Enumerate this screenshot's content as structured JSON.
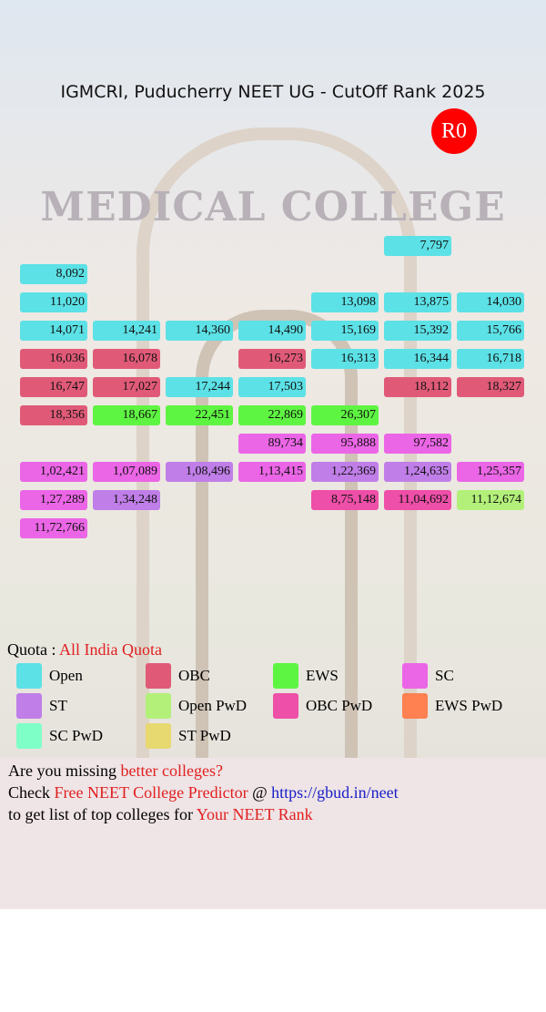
{
  "header": {
    "title": "IGMCRI, Puducherry NEET UG - CutOff Rank 2025",
    "badge": "R0"
  },
  "background": {
    "sign": "MEDICAL COLLEGE"
  },
  "grid": {
    "rows": [
      [
        null,
        null,
        null,
        null,
        null,
        {
          "text": "7,797",
          "color": "#5ce1e6"
        },
        null
      ],
      [
        {
          "text": "8,092",
          "color": "#5ce1e6"
        },
        null,
        null,
        null,
        null,
        null,
        null
      ],
      [
        {
          "text": "11,020",
          "color": "#5ce1e6"
        },
        null,
        null,
        null,
        {
          "text": "13,098",
          "color": "#5ce1e6"
        },
        {
          "text": "13,875",
          "color": "#5ce1e6"
        },
        {
          "text": "14,030",
          "color": "#5ce1e6"
        }
      ],
      [
        {
          "text": "14,071",
          "color": "#5ce1e6"
        },
        {
          "text": "14,241",
          "color": "#5ce1e6"
        },
        {
          "text": "14,360",
          "color": "#5ce1e6"
        },
        {
          "text": "14,490",
          "color": "#5ce1e6"
        },
        {
          "text": "15,169",
          "color": "#5ce1e6"
        },
        {
          "text": "15,392",
          "color": "#5ce1e6"
        },
        {
          "text": "15,766",
          "color": "#5ce1e6"
        }
      ],
      [
        {
          "text": "16,036",
          "color": "#e05a78"
        },
        {
          "text": "16,078",
          "color": "#e05a78"
        },
        null,
        {
          "text": "16,273",
          "color": "#e05a78"
        },
        {
          "text": "16,313",
          "color": "#5ce1e6"
        },
        {
          "text": "16,344",
          "color": "#5ce1e6"
        },
        {
          "text": "16,718",
          "color": "#5ce1e6"
        }
      ],
      [
        {
          "text": "16,747",
          "color": "#e05a78"
        },
        {
          "text": "17,027",
          "color": "#e05a78"
        },
        {
          "text": "17,244",
          "color": "#5ce1e6"
        },
        {
          "text": "17,503",
          "color": "#5ce1e6"
        },
        null,
        {
          "text": "18,112",
          "color": "#e05a78"
        },
        {
          "text": "18,327",
          "color": "#e05a78"
        }
      ],
      [
        {
          "text": "18,356",
          "color": "#e05a78"
        },
        {
          "text": "18,667",
          "color": "#5ef542"
        },
        {
          "text": "22,451",
          "color": "#5ef542"
        },
        {
          "text": "22,869",
          "color": "#5ef542"
        },
        {
          "text": "26,307",
          "color": "#5ef542"
        },
        null,
        null
      ],
      [
        null,
        null,
        null,
        {
          "text": "89,734",
          "color": "#eb66e6"
        },
        {
          "text": "95,888",
          "color": "#eb66e6"
        },
        {
          "text": "97,582",
          "color": "#eb66e6"
        },
        null
      ],
      [
        {
          "text": "1,02,421",
          "color": "#eb66e6"
        },
        {
          "text": "1,07,089",
          "color": "#eb66e6"
        },
        {
          "text": "1,08,496",
          "color": "#c07ee8"
        },
        {
          "text": "1,13,415",
          "color": "#eb66e6"
        },
        {
          "text": "1,22,369",
          "color": "#c07ee8"
        },
        {
          "text": "1,24,635",
          "color": "#c07ee8"
        },
        {
          "text": "1,25,357",
          "color": "#eb66e6"
        }
      ],
      [
        {
          "text": "1,27,289",
          "color": "#eb66e6"
        },
        {
          "text": "1,34,248",
          "color": "#c07ee8"
        },
        null,
        null,
        {
          "text": "8,75,148",
          "color": "#ee4fa8"
        },
        {
          "text": "11,04,692",
          "color": "#ee4fa8"
        },
        {
          "text": "11,12,674",
          "color": "#b3f07a"
        }
      ],
      [
        {
          "text": "11,72,766",
          "color": "#eb66e6"
        },
        null,
        null,
        null,
        null,
        null,
        null
      ]
    ]
  },
  "quota": {
    "label": "Quota :",
    "value": "All India Quota"
  },
  "legend": [
    {
      "name": "Open",
      "color": "#5ce1e6"
    },
    {
      "name": "OBC",
      "color": "#e05a78"
    },
    {
      "name": "EWS",
      "color": "#5ef542"
    },
    {
      "name": "SC",
      "color": "#eb66e6"
    },
    {
      "name": "ST",
      "color": "#c07ee8"
    },
    {
      "name": "Open PwD",
      "color": "#b3f07a"
    },
    {
      "name": "OBC PwD",
      "color": "#ee4fa8"
    },
    {
      "name": "EWS PwD",
      "color": "#ff8050"
    },
    {
      "name": "SC PwD",
      "color": "#7fffc8"
    },
    {
      "name": "ST PwD",
      "color": "#e8d870"
    }
  ],
  "footer": {
    "lines": [
      [
        {
          "text": "Are you missing ",
          "color": "#000000"
        },
        {
          "text": "better colleges?",
          "color": "#e02020"
        }
      ],
      [
        {
          "text": "Check ",
          "color": "#000000"
        },
        {
          "text": "Free NEET College Predictor",
          "color": "#e02020"
        },
        {
          "text": " @ ",
          "color": "#000000"
        },
        {
          "text": "https://gbud.in/neet",
          "color": "#1a20c8"
        }
      ],
      [
        {
          "text": "to get list of top colleges for ",
          "color": "#000000"
        },
        {
          "text": "Your NEET Rank",
          "color": "#e02020"
        }
      ]
    ]
  }
}
